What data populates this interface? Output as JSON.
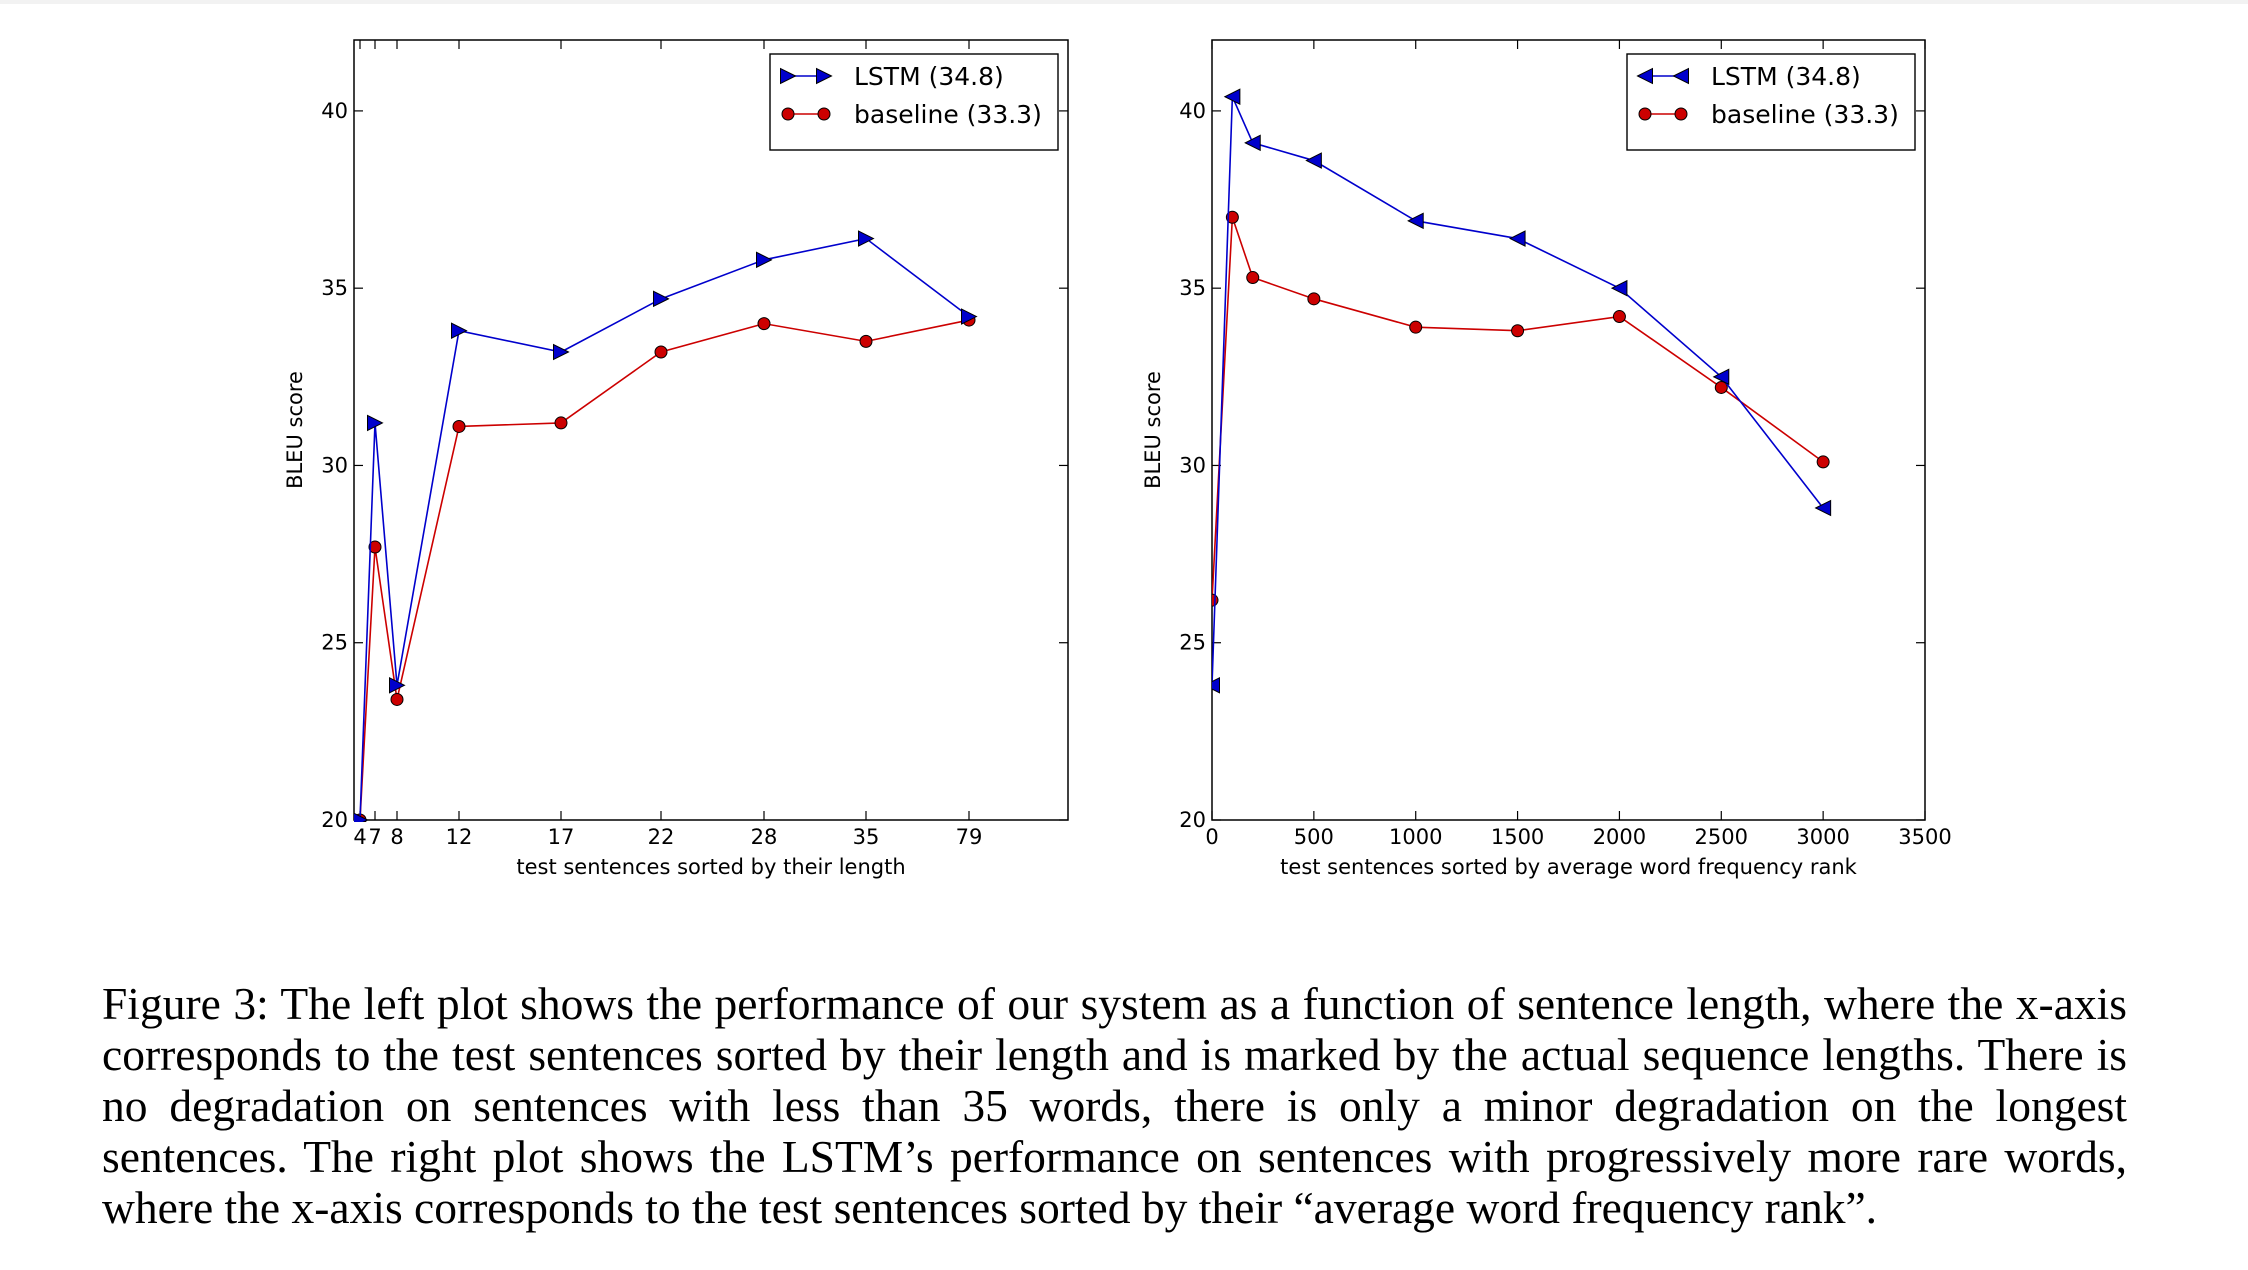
{
  "chart_data": [
    {
      "type": "line",
      "xlabel": "test sentences sorted by their length",
      "ylabel": "BLEU score",
      "x_tick_labels": [
        "4",
        "7",
        "8",
        "12",
        "17",
        "22",
        "28",
        "35",
        "79"
      ],
      "y_ticks": [
        "20",
        "25",
        "30",
        "35",
        "40"
      ],
      "ylim": [
        20,
        42
      ],
      "x": [
        4,
        7,
        8,
        12,
        17,
        22,
        28,
        35,
        79
      ],
      "series": [
        {
          "name": "LSTM  (34.8)",
          "marker": "triangle-right",
          "color": "#0000cc",
          "values": [
            20.0,
            31.2,
            23.8,
            33.8,
            33.2,
            34.7,
            35.8,
            36.4,
            34.2
          ]
        },
        {
          "name": "baseline (33.3)",
          "marker": "circle",
          "color": "#cc0000",
          "values": [
            20.0,
            27.7,
            23.4,
            31.1,
            31.2,
            33.2,
            34.0,
            33.5,
            34.1
          ]
        }
      ],
      "legend": "top-right",
      "grid": false
    },
    {
      "type": "line",
      "xlabel": "test sentences sorted by average word frequency rank",
      "ylabel": "BLEU score",
      "x_ticks": [
        "0",
        "500",
        "1000",
        "1500",
        "2000",
        "2500",
        "3000",
        "3500"
      ],
      "y_ticks": [
        "20",
        "25",
        "30",
        "35",
        "40"
      ],
      "xlim": [
        0,
        3500
      ],
      "ylim": [
        20,
        42
      ],
      "x": [
        0,
        100,
        200,
        500,
        1000,
        1500,
        2000,
        2500,
        3000
      ],
      "series": [
        {
          "name": "LSTM  (34.8)",
          "marker": "triangle-left",
          "color": "#0000cc",
          "values": [
            23.8,
            40.4,
            39.1,
            38.6,
            36.9,
            36.4,
            35.0,
            32.5,
            28.8
          ]
        },
        {
          "name": "baseline (33.3)",
          "marker": "circle",
          "color": "#cc0000",
          "values": [
            26.2,
            37.0,
            35.3,
            34.7,
            33.9,
            33.8,
            34.2,
            32.2,
            30.1
          ]
        }
      ],
      "legend": "top-right",
      "grid": false
    }
  ],
  "caption": "Figure 3:  The left plot shows the performance of our system as a function of sentence length, where the x-axis corresponds to the test sentences sorted by their length and is marked by the actual sequence lengths. There is no degradation on sentences with less than 35 words, there is only a minor degradation on the longest sentences.  The right plot shows the LSTM’s performance on sentences with progressively more rare words, where the x-axis corresponds to the test sentences sorted by their “average word frequency rank”."
}
